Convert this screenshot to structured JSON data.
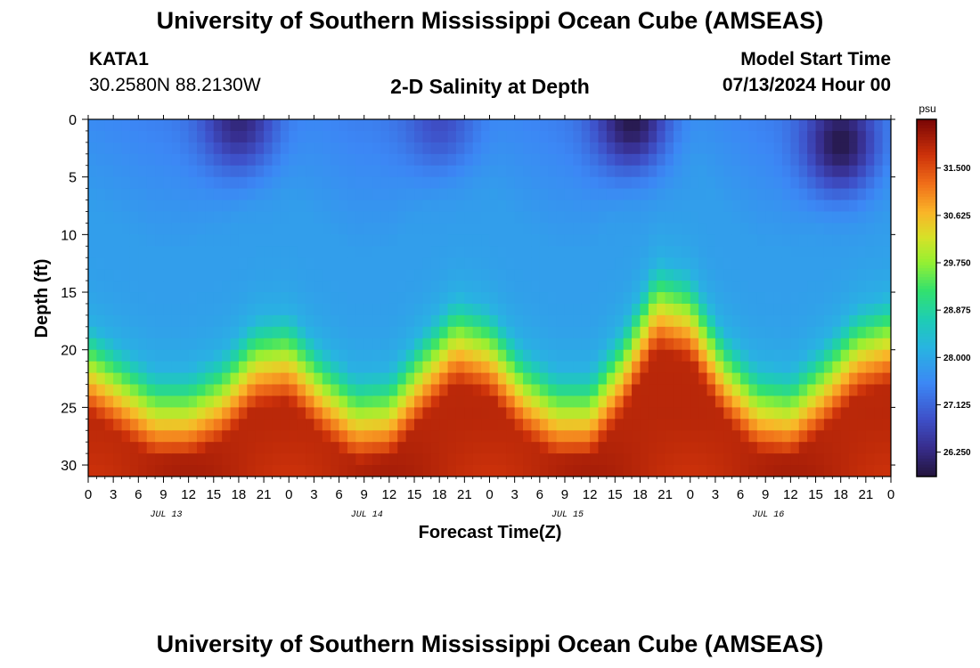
{
  "header": {
    "title": "University of Southern Mississippi Ocean Cube (AMSEAS)",
    "station_id": "KATA1",
    "coordinates": "30.2580N  88.2130W",
    "subtitle": "2-D Salinity at Depth",
    "start_label": "Model Start Time",
    "start_value": "07/13/2024 Hour 00"
  },
  "footer": {
    "title": "University of Southern Mississippi Ocean Cube (AMSEAS)"
  },
  "chart_data": {
    "type": "heatmap",
    "title": "2-D Salinity at Depth",
    "xlabel": "Forecast Time(Z)",
    "ylabel": "Depth (ft)",
    "x_range_hours": [
      0,
      96
    ],
    "x_tick_step_hours": 3,
    "x_tick_labels": [
      "0",
      "3",
      "6",
      "9",
      "12",
      "15",
      "18",
      "21",
      "0",
      "3",
      "6",
      "9",
      "12",
      "15",
      "18",
      "21",
      "0",
      "3",
      "6",
      "9",
      "12",
      "15",
      "18",
      "21",
      "0",
      "3",
      "6",
      "9",
      "12",
      "15",
      "18",
      "21",
      "0"
    ],
    "date_labels": [
      {
        "text": "JUL 13",
        "hour": 9
      },
      {
        "text": "JUL 14",
        "hour": 33
      },
      {
        "text": "JUL 15",
        "hour": 57
      },
      {
        "text": "JUL 16",
        "hour": 81
      }
    ],
    "y_range_ft": [
      0,
      31
    ],
    "y_ticks": [
      0,
      5,
      10,
      15,
      20,
      25,
      30
    ],
    "colorbar": {
      "unit": "psu",
      "min": 25.8,
      "max": 32.4,
      "ticks": [
        26.25,
        27.125,
        28.0,
        28.875,
        29.75,
        30.625,
        31.5
      ],
      "tick_labels": [
        "26.250",
        "27.125",
        "28.000",
        "28.875",
        "29.750",
        "30.625",
        "31.500"
      ]
    },
    "halocline_depth_ft": [
      [
        0,
        17.5
      ],
      [
        4,
        19.5
      ],
      [
        8,
        21.5
      ],
      [
        12,
        21.5
      ],
      [
        16,
        20
      ],
      [
        20,
        17
      ],
      [
        24,
        16.5
      ],
      [
        28,
        19.5
      ],
      [
        32,
        21.8
      ],
      [
        36,
        21.5
      ],
      [
        40,
        18
      ],
      [
        44,
        15
      ],
      [
        48,
        16
      ],
      [
        52,
        19.5
      ],
      [
        56,
        21.5
      ],
      [
        60,
        21.5
      ],
      [
        64,
        17.5
      ],
      [
        68,
        12
      ],
      [
        72,
        13
      ],
      [
        76,
        18
      ],
      [
        80,
        21
      ],
      [
        84,
        21.5
      ],
      [
        88,
        19
      ],
      [
        92,
        16
      ],
      [
        96,
        15
      ]
    ],
    "fresh_surface_patches": [
      {
        "hour": 18,
        "depth_ft": 0,
        "psu": 26.2
      },
      {
        "hour": 42,
        "depth_ft": 0,
        "psu": 26.8
      },
      {
        "hour": 65,
        "depth_ft": 0,
        "psu": 25.9
      },
      {
        "hour": 90,
        "depth_ft": 2,
        "psu": 25.9
      }
    ],
    "surface_psu": 27.7,
    "bottom_psu": 31.9
  }
}
